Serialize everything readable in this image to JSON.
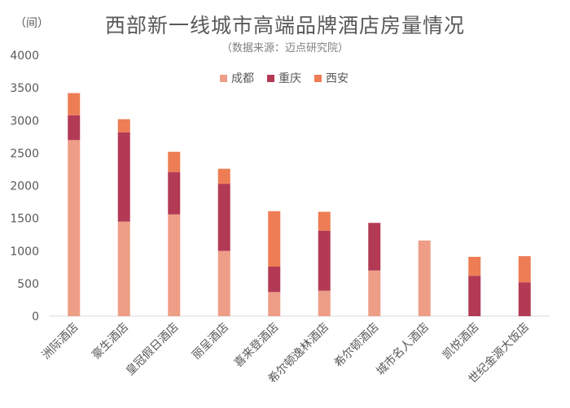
{
  "chart_data": {
    "type": "bar",
    "stacked": true,
    "title": "西部新一线城市高端品牌酒店房量情况",
    "subtitle": "（数据来源：迈点研究院）",
    "ylabel": "（间）",
    "ylim": [
      0,
      4000
    ],
    "yticks": [
      0,
      500,
      1000,
      1500,
      2000,
      2500,
      3000,
      3500,
      4000
    ],
    "legend_position": "top-center",
    "categories": [
      "洲际酒店",
      "豪生酒店",
      "皇冠假日酒店",
      "丽呈酒店",
      "喜来登酒店",
      "希尔顿逸林酒店",
      "希尔顿酒店",
      "城市名人酒店",
      "凯悦酒店",
      "世纪金源大饭店"
    ],
    "series": [
      {
        "name": "成都",
        "color": "#ee9e87",
        "values": [
          2700,
          1450,
          1560,
          1000,
          370,
          390,
          700,
          1160,
          0,
          0
        ]
      },
      {
        "name": "重庆",
        "color": "#b23a55",
        "values": [
          380,
          1370,
          650,
          1030,
          390,
          920,
          730,
          0,
          620,
          520
        ]
      },
      {
        "name": "西安",
        "color": "#ee7d55",
        "values": [
          340,
          200,
          310,
          230,
          850,
          290,
          0,
          0,
          290,
          400
        ]
      }
    ]
  }
}
